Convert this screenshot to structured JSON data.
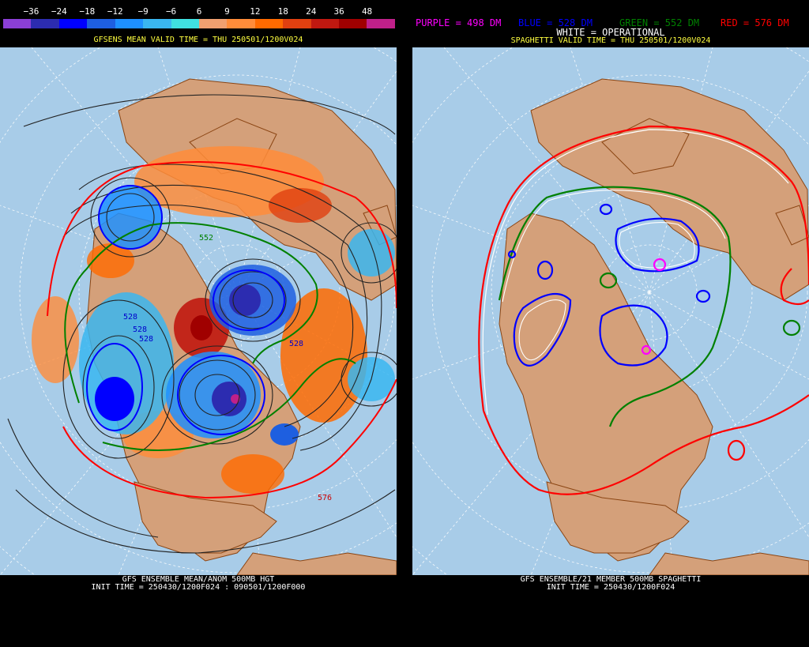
{
  "left": {
    "colorbar": {
      "labels": [
        "−36",
        "−24",
        "−18",
        "−12",
        "−9",
        "−6",
        "6",
        "9",
        "12",
        "18",
        "24",
        "36",
        "48"
      ],
      "colors": [
        "#8b3fd6",
        "#2c2cb0",
        "#0000ff",
        "#1e5fe0",
        "#1e90ff",
        "#3ab6f0",
        "#40e0e0",
        "#f0a070",
        "#ff8c3a",
        "#ff6a00",
        "#e04010",
        "#c01810",
        "#a00000",
        "#c0208a"
      ]
    },
    "title": "GFSENS MEAN VALID TIME = THU 250501/1200V024",
    "contour_labels": [
      "552",
      "528",
      "528",
      "528",
      "528",
      "576"
    ],
    "footer_line1": "GFS ENSEMBLE MEAN/ANOM 500MB HGT",
    "footer_line2": "INIT TIME = 250430/1200F024 : 090501/1200F000"
  },
  "right": {
    "legend": {
      "purple": "PURPLE = 498 DM",
      "blue": "BLUE = 528 DM",
      "green": "GREEN = 552 DM",
      "red": "RED = 576 DM",
      "white": "WHITE = OPERATIONAL"
    },
    "title": "SPAGHETTI VALID TIME = THU 250501/1200V024",
    "footer_line1": "GFS ENSEMBLE/21 MEMBER 500MB SPAGHETTI",
    "footer_line2": "INIT TIME = 250430/1200F024"
  },
  "colors": {
    "ocean": "#a8cce8",
    "land": "#d4a07a",
    "border": "#8b4513",
    "purple": "#ff00ff",
    "blue": "#0000ff",
    "green": "#008000",
    "red": "#ff0000"
  }
}
